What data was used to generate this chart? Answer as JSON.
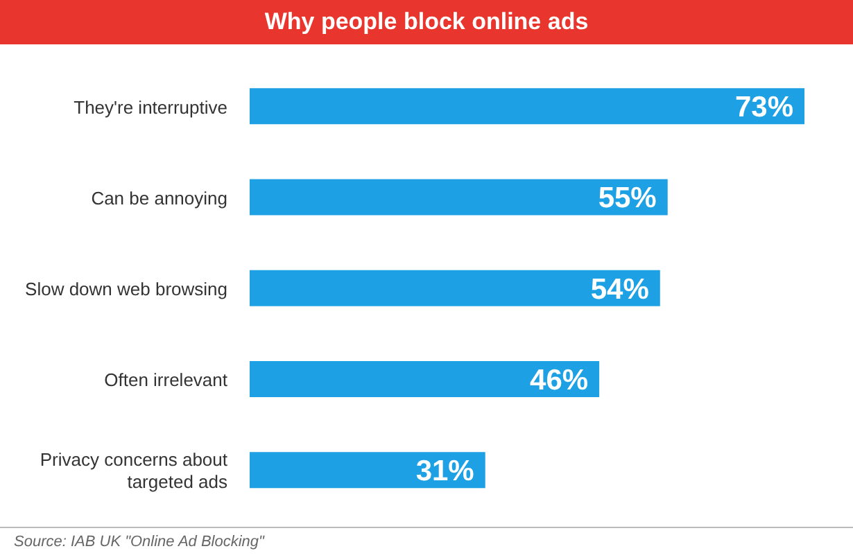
{
  "chart_data": {
    "type": "bar",
    "orientation": "horizontal",
    "title": "Why people block online ads",
    "categories": [
      "They're interruptive",
      "Can be annoying",
      "Slow down web browsing",
      "Often irrelevant",
      "Privacy concerns about targeted ads"
    ],
    "values": [
      73,
      55,
      54,
      46,
      31
    ],
    "value_labels": [
      "73%",
      "55%",
      "54%",
      "46%",
      "31%"
    ],
    "color": "#1ea1e4",
    "annotations": [
      "Source: IAB UK \"Online Ad Blocking\""
    ]
  }
}
